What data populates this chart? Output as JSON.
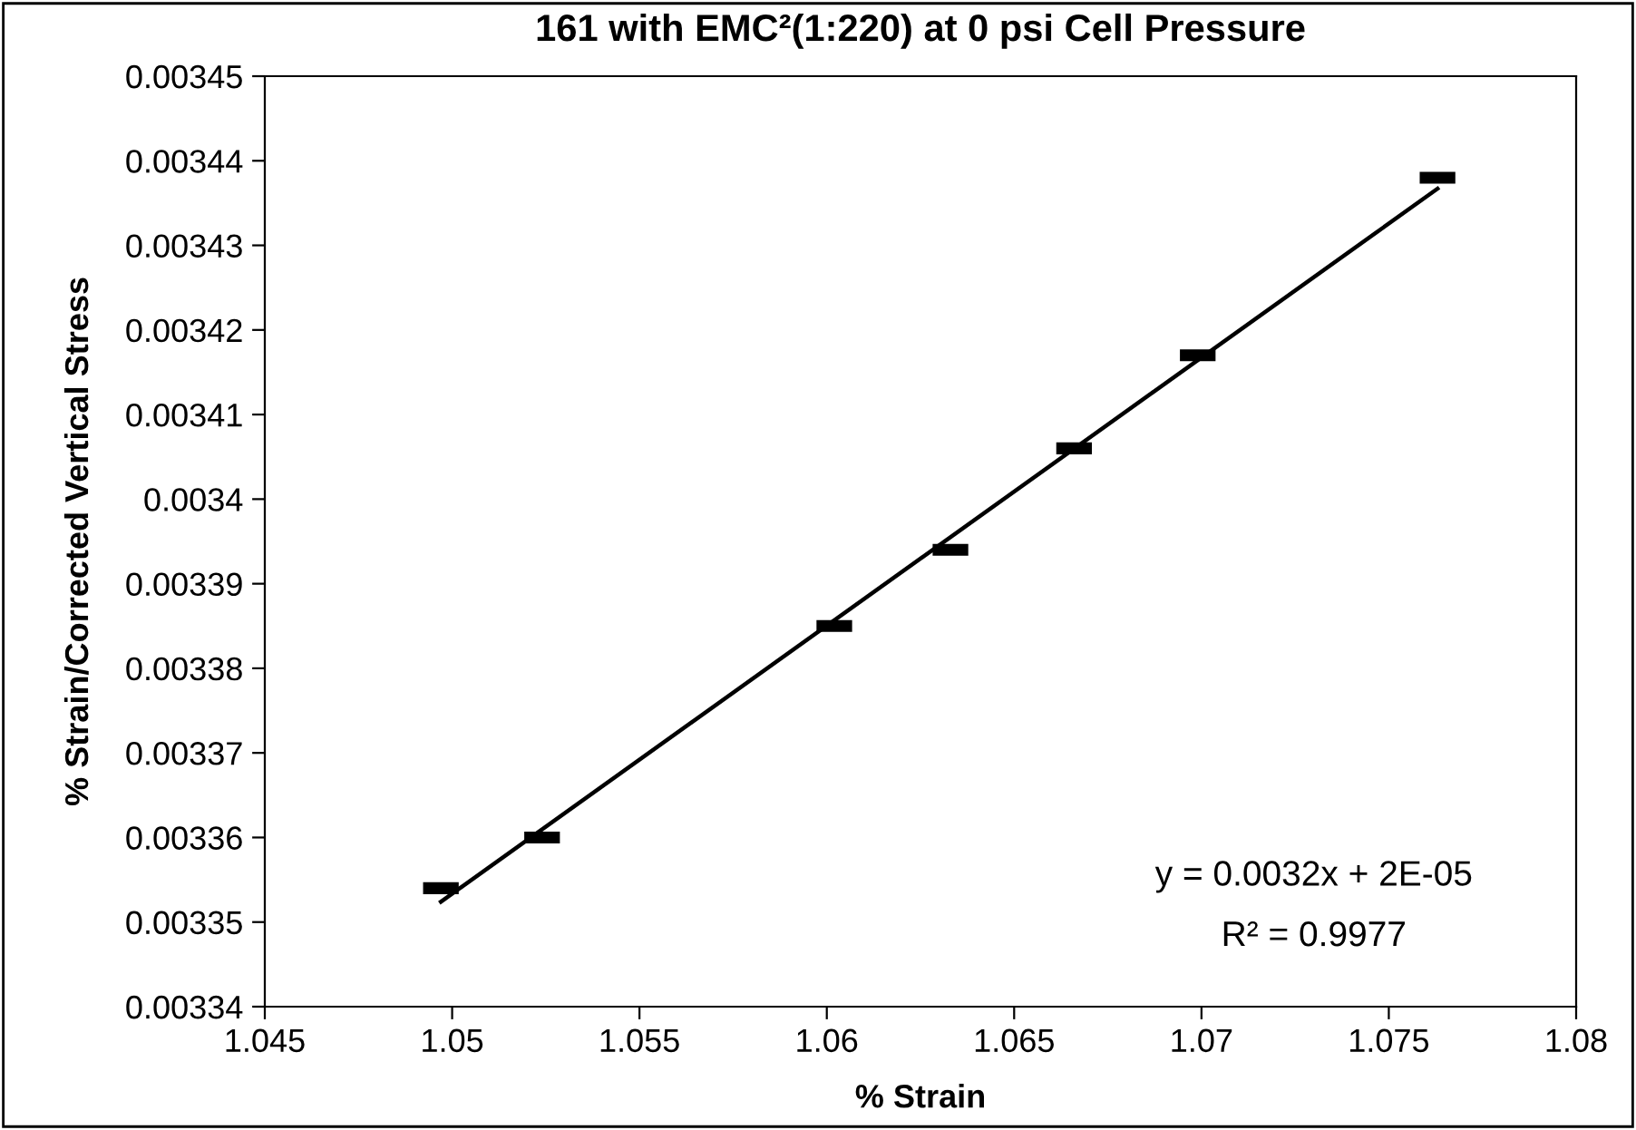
{
  "chart_data": {
    "type": "scatter",
    "title": "161 with EMC²(1:220) at 0 psi Cell Pressure",
    "xlabel": "% Strain",
    "ylabel": "% Strain/Corrected Vertical Stress",
    "series": [
      {
        "color": "#000000",
        "x": [
          1.0497,
          1.0524,
          1.0602,
          1.0633,
          1.0666,
          1.0699,
          1.0763
        ],
        "values": [
          0.003354,
          0.00336,
          0.003385,
          0.003394,
          0.003406,
          0.003417,
          0.003438
        ]
      },
      {
        "type": "line",
        "color": "#000000",
        "marker": "none",
        "x": [
          1.0497,
          1.0763
        ],
        "values": [
          0.0033524,
          0.0034367
        ]
      }
    ],
    "xlim": [
      1.045,
      1.08
    ],
    "xticks": [
      1.045,
      1.05,
      1.055,
      1.06,
      1.065,
      1.07,
      1.075,
      1.08
    ],
    "ylim": [
      0.00334,
      0.00345
    ],
    "yticks": [
      0.00334,
      0.00335,
      0.00336,
      0.00337,
      0.00338,
      0.00339,
      0.0034,
      0.00341,
      0.00342,
      0.00343,
      0.00344,
      0.00345
    ],
    "grid": false,
    "legend": false,
    "annotations": [
      "y = 0.0032x + 2E-05",
      "R² = 0.9977"
    ]
  }
}
